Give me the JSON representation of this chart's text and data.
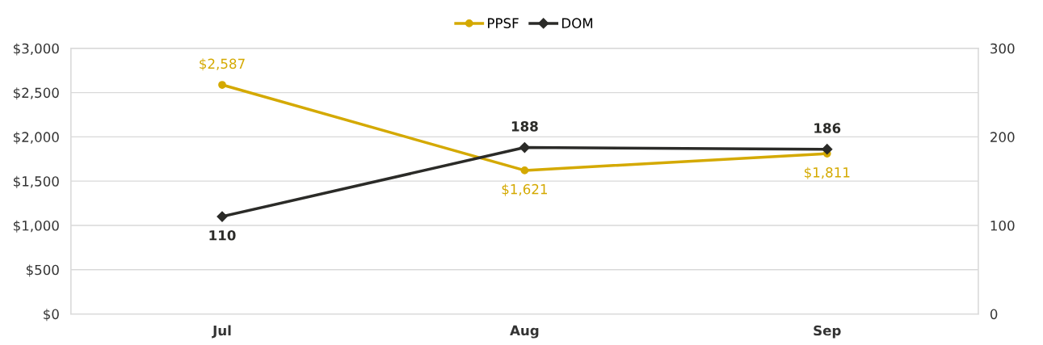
{
  "chart_data": {
    "type": "line",
    "categories": [
      "Jul",
      "Aug",
      "Sep"
    ],
    "series": [
      {
        "name": "PPSF",
        "color": "#d4a900",
        "values": [
          2587,
          1621,
          1811
        ],
        "value_labels": [
          "$2,587",
          "$1,621",
          "$1,811"
        ],
        "marker": "circle"
      },
      {
        "name": "DOM",
        "color": "#2b2b28",
        "values": [
          110,
          188,
          186
        ],
        "value_labels": [
          "110",
          "188",
          "186"
        ],
        "marker": "diamond",
        "axis": "y2"
      }
    ],
    "ylim": [
      0,
      3000
    ],
    "yticks": [
      {
        "value": 0,
        "label": "$0"
      },
      {
        "value": 500,
        "label": "$500"
      },
      {
        "value": 1000,
        "label": "$1,000"
      },
      {
        "value": 1500,
        "label": "$1,500"
      },
      {
        "value": 2000,
        "label": "$2,000"
      },
      {
        "value": 2500,
        "label": "$2,500"
      },
      {
        "value": 3000,
        "label": "$3,000"
      }
    ],
    "y2lim": [
      0,
      300
    ],
    "y2ticks": [
      0,
      100,
      200,
      300
    ],
    "grid": "y",
    "legend": "top",
    "line_style": "solid"
  }
}
